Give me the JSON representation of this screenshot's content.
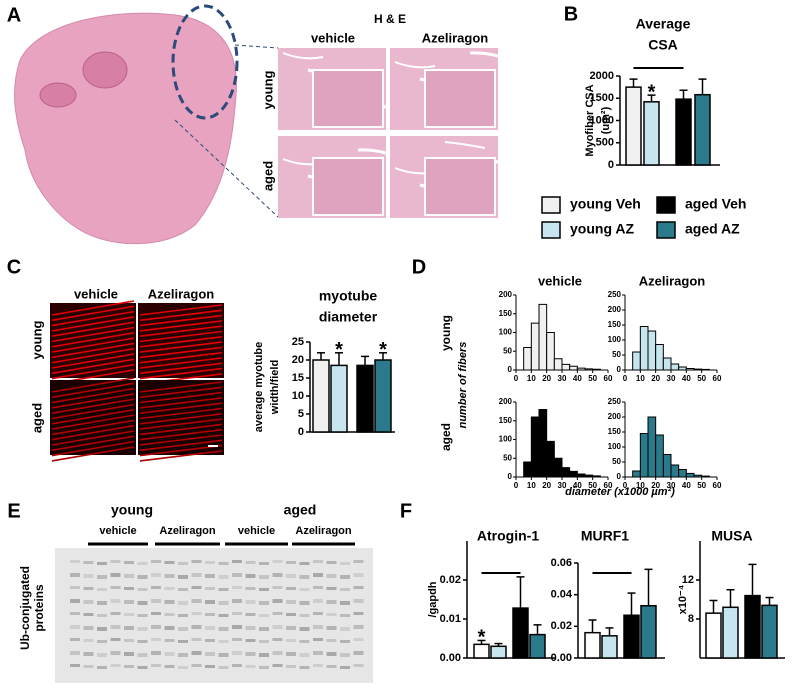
{
  "panel_labels": [
    "A",
    "B",
    "C",
    "D",
    "E",
    "F"
  ],
  "he": {
    "title": "H & E",
    "columns": [
      "vehicle",
      "Azeliragon"
    ],
    "rows": [
      "young",
      "aged"
    ]
  },
  "myotubes": {
    "columns": [
      "vehicle",
      "Azeliragon"
    ],
    "rows": [
      "young",
      "aged"
    ]
  },
  "histograms": {
    "columns": [
      "vehicle",
      "Azeliragon"
    ],
    "rows": [
      "young",
      "aged"
    ],
    "ylabel": "number of fibers",
    "xlabel": "diameter (x1000 µm²)"
  },
  "blot": {
    "groups": [
      "young",
      "aged"
    ],
    "treatments": [
      "vehicle",
      "Azeliragon",
      "vehicle",
      "Azeliragon"
    ],
    "ylabel": [
      "Ub-conjugated",
      "proteins"
    ]
  },
  "chart_data": [
    {
      "type": "bar",
      "title": [
        "Average",
        "CSA"
      ],
      "ylabel": [
        "Myofiber CSA",
        "(um²)"
      ],
      "series": [
        {
          "name": "young Veh",
          "color": "#f0f0f0",
          "values": [
            1750
          ],
          "errors": [
            180
          ]
        },
        {
          "name": "young AZ",
          "color": "#c6e5ee",
          "values": [
            1420
          ],
          "errors": [
            150
          ]
        },
        {
          "name": "aged Veh",
          "color": "#000000",
          "values": [
            1480
          ],
          "errors": [
            200
          ]
        },
        {
          "name": "aged AZ",
          "color": "#2a7a8c",
          "values": [
            1580
          ],
          "errors": [
            350
          ]
        }
      ],
      "annotations": [
        "*"
      ],
      "ylim": [
        0,
        2000
      ],
      "yticks": [
        0,
        500,
        1000,
        1500,
        2000
      ]
    },
    {
      "type": "bar",
      "title": [
        "myotube",
        "diameter"
      ],
      "ylabel": [
        "average myotube",
        "width/field"
      ],
      "series": [
        {
          "color": "#f0f0f0",
          "values": [
            20
          ],
          "errors": [
            2
          ]
        },
        {
          "color": "#c6e5ee",
          "values": [
            18.5
          ],
          "errors": [
            3.5
          ]
        },
        {
          "color": "#000000",
          "values": [
            18.5
          ],
          "errors": [
            2.5
          ]
        },
        {
          "color": "#2a7a8c",
          "values": [
            20
          ],
          "errors": [
            2
          ]
        }
      ],
      "annotations": [
        "*",
        "*"
      ],
      "ylim": [
        0,
        25
      ],
      "yticks": [
        0,
        5,
        10,
        15,
        20,
        25
      ]
    },
    {
      "type": "histogram",
      "color": "#f0f0f0",
      "bins": [
        5,
        10,
        15,
        20,
        25,
        30,
        35,
        40,
        45,
        50,
        55
      ],
      "values": [
        60,
        125,
        175,
        100,
        30,
        15,
        10,
        5,
        3,
        2
      ],
      "xlim": [
        0,
        60
      ],
      "xticks": [
        0,
        10,
        20,
        30,
        40,
        50,
        60
      ],
      "ylim": [
        0,
        200
      ],
      "yticks": [
        0,
        50,
        100,
        150,
        200
      ]
    },
    {
      "type": "histogram",
      "color": "#c6e5ee",
      "bins": [
        5,
        10,
        15,
        20,
        25,
        30,
        35,
        40,
        45,
        50,
        55
      ],
      "values": [
        60,
        145,
        130,
        85,
        40,
        20,
        10,
        5,
        3,
        2
      ],
      "xlim": [
        0,
        60
      ],
      "xticks": [
        0,
        10,
        20,
        30,
        40,
        50,
        60
      ],
      "ylim": [
        0,
        250
      ],
      "yticks": [
        0,
        50,
        100,
        150,
        200,
        250
      ]
    },
    {
      "type": "histogram",
      "color": "#000000",
      "bins": [
        5,
        10,
        15,
        20,
        25,
        30,
        35,
        40,
        45,
        50,
        55
      ],
      "values": [
        40,
        160,
        180,
        95,
        50,
        25,
        15,
        8,
        5,
        3
      ],
      "xlim": [
        0,
        60
      ],
      "xticks": [
        0,
        10,
        20,
        30,
        40,
        50,
        60
      ],
      "ylim": [
        0,
        200
      ],
      "yticks": [
        0,
        50,
        100,
        150,
        200
      ]
    },
    {
      "type": "histogram",
      "color": "#2a7a8c",
      "bins": [
        5,
        10,
        15,
        20,
        25,
        30,
        35,
        40,
        45,
        50,
        55
      ],
      "values": [
        20,
        145,
        200,
        140,
        75,
        40,
        25,
        12,
        6,
        3
      ],
      "xlim": [
        0,
        60
      ],
      "xticks": [
        0,
        10,
        20,
        30,
        40,
        50,
        60
      ],
      "ylim": [
        0,
        250
      ],
      "yticks": [
        0,
        50,
        100,
        150,
        200,
        250
      ]
    },
    {
      "type": "bar",
      "title": [
        "Atrogin-1"
      ],
      "ylabel": [
        "/gapdh"
      ],
      "series": [
        {
          "color": "#ffffff",
          "values": [
            0.0035
          ],
          "errors": [
            0.001
          ]
        },
        {
          "color": "#c6e5ee",
          "values": [
            0.003
          ],
          "errors": [
            0.0007
          ]
        },
        {
          "color": "#000000",
          "values": [
            0.0128
          ],
          "errors": [
            0.008
          ]
        },
        {
          "color": "#2a7a8c",
          "values": [
            0.006
          ],
          "errors": [
            0.0025
          ]
        }
      ],
      "annotations": [
        "*"
      ],
      "ylim": [
        0,
        0.03
      ],
      "yticks": [
        {
          "value": 0,
          "label": "0.00"
        },
        {
          "value": 0.01,
          "label": "0.01"
        },
        {
          "value": 0.02,
          "label": "0.02"
        }
      ]
    },
    {
      "type": "bar",
      "title": [
        "MURF1"
      ],
      "series": [
        {
          "color": "#ffffff",
          "values": [
            0.016
          ],
          "errors": [
            0.008
          ]
        },
        {
          "color": "#c6e5ee",
          "values": [
            0.014
          ],
          "errors": [
            0.005
          ]
        },
        {
          "color": "#000000",
          "values": [
            0.027
          ],
          "errors": [
            0.014
          ]
        },
        {
          "color": "#2a7a8c",
          "values": [
            0.033
          ],
          "errors": [
            0.023
          ]
        }
      ],
      "ylim": [
        0,
        0.06
      ],
      "yticks": [
        {
          "value": 0,
          "label": "0.00"
        },
        {
          "value": 0.02,
          "label": "0.02"
        },
        {
          "value": 0.04,
          "label": "0.04"
        },
        {
          "value": 0.06,
          "label": "0.06"
        }
      ]
    },
    {
      "type": "bar",
      "title": [
        "MUSA"
      ],
      "ylabel": [
        "x10⁻⁴"
      ],
      "series": [
        {
          "color": "#ffffff",
          "values": [
            8.6
          ],
          "errors": [
            1.3
          ]
        },
        {
          "color": "#c6e5ee",
          "values": [
            9.2
          ],
          "errors": [
            1.8
          ]
        },
        {
          "color": "#000000",
          "values": [
            10.4
          ],
          "errors": [
            3.2
          ]
        },
        {
          "color": "#2a7a8c",
          "values": [
            9.4
          ],
          "errors": [
            0.8
          ]
        }
      ],
      "ylim": [
        4,
        16
      ],
      "yticks": [
        8,
        12
      ]
    }
  ]
}
